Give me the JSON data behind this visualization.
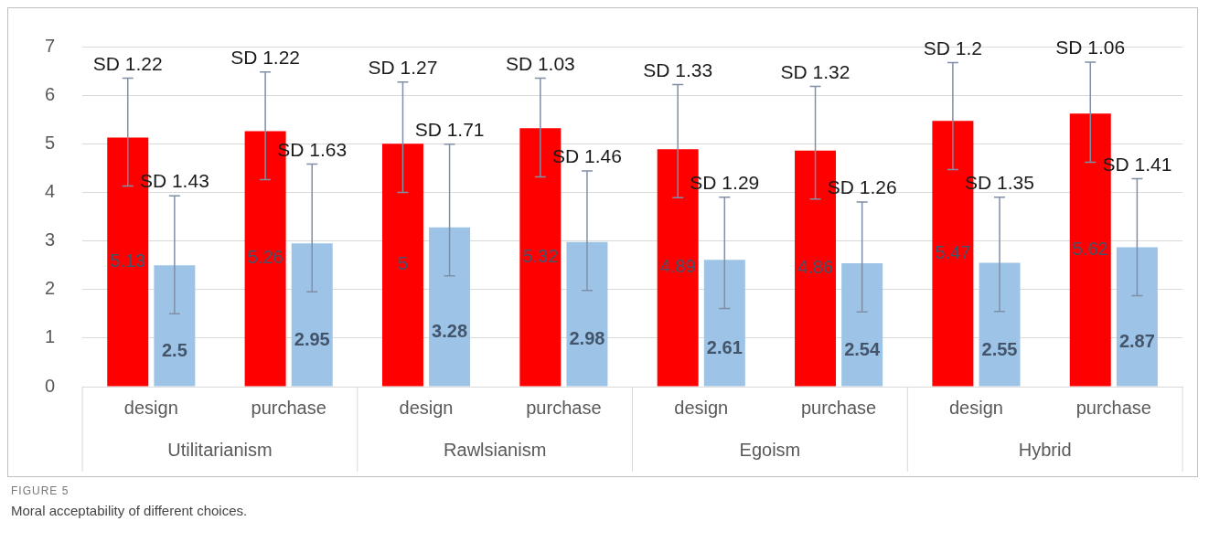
{
  "chart_data": {
    "type": "bar",
    "title": "FIGURE 5",
    "subtitle": "Moral acceptability of different choices.",
    "categories": [
      "design",
      "purchase",
      "design",
      "purchase",
      "design",
      "purchase",
      "design",
      "purchase"
    ],
    "series": [
      {
        "color": "#ff0000",
        "values": [
          5.13,
          5.26,
          5,
          5.32,
          4.89,
          4.86,
          5.47,
          5.62
        ],
        "errors": [
          [
            4.13,
            6.35
          ],
          [
            4.26,
            6.48
          ],
          [
            4,
            6.27
          ],
          [
            4.32,
            6.35
          ],
          [
            3.89,
            6.22
          ],
          [
            3.86,
            6.18
          ],
          [
            4.47,
            6.67
          ],
          [
            4.62,
            6.68
          ]
        ]
      },
      {
        "color": "#9dc3e6",
        "values": [
          2.5,
          2.95,
          3.28,
          2.98,
          2.61,
          2.54,
          2.55,
          2.87
        ],
        "errors": [
          [
            1.5,
            3.93
          ],
          [
            1.95,
            4.58
          ],
          [
            2.28,
            4.99
          ],
          [
            1.98,
            4.44
          ],
          [
            1.61,
            3.9
          ],
          [
            1.54,
            3.8
          ],
          [
            1.55,
            3.9
          ],
          [
            1.87,
            4.28
          ]
        ]
      }
    ],
    "annotations": [
      "SD 1.22",
      "SD 1.43",
      "SD 1.22",
      "SD 1.63",
      "SD 1.27",
      "SD 1.71",
      "SD 1.03",
      "SD 1.46",
      "SD 1.33",
      "SD 1.29",
      "SD 1.32",
      "SD 1.26",
      "SD 1.2",
      "SD 1.35",
      "SD 1.06",
      "SD 1.41",
      "Utilitarianism",
      "Rawlsianism",
      "Egoism",
      "Hybrid"
    ],
    "ylim": [
      0,
      7
    ],
    "yticks": [
      0,
      1,
      2,
      3,
      4,
      5,
      6,
      7
    ],
    "grid": "y",
    "data_labels": true,
    "legend": false
  }
}
